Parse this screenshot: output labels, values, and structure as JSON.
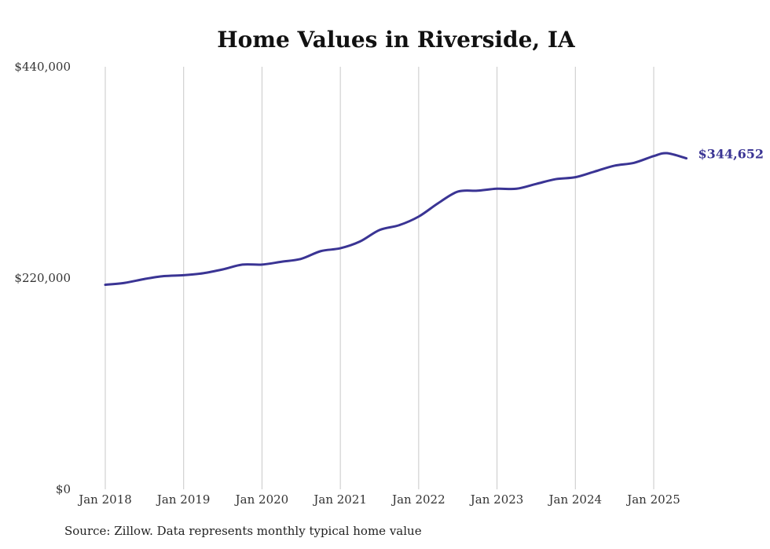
{
  "chart_data": {
    "type": "line",
    "title": "Home Values in Riverside, IA",
    "xlabel": "",
    "ylabel": "",
    "ylim": [
      0,
      440000
    ],
    "xlim": [
      "2018-01",
      "2025-06"
    ],
    "x_ticks": [
      "Jan 2018",
      "Jan 2019",
      "Jan 2020",
      "Jan 2021",
      "Jan 2022",
      "Jan 2023",
      "Jan 2024",
      "Jan 2025"
    ],
    "y_ticks": [
      "$0",
      "$220,000",
      "$440,000"
    ],
    "y_tick_values": [
      0,
      220000,
      440000
    ],
    "vertical_grid": true,
    "horizontal_grid": false,
    "line_color": "#3a3494",
    "end_label": "$344,652",
    "series": [
      {
        "x": [
          "2018-01",
          "2018-04",
          "2018-07",
          "2018-10",
          "2019-01",
          "2019-04",
          "2019-07",
          "2019-10",
          "2020-01",
          "2020-04",
          "2020-07",
          "2020-10",
          "2021-01",
          "2021-04",
          "2021-07",
          "2021-10",
          "2022-01",
          "2022-04",
          "2022-07",
          "2022-10",
          "2023-01",
          "2023-04",
          "2023-07",
          "2023-10",
          "2024-01",
          "2024-04",
          "2024-07",
          "2024-10",
          "2025-01",
          "2025-03",
          "2025-06"
        ],
        "values": [
          213000,
          215000,
          219000,
          222000,
          223000,
          225000,
          229000,
          234000,
          234000,
          237000,
          240000,
          248000,
          251000,
          258000,
          270000,
          275000,
          284000,
          298000,
          310000,
          311000,
          313000,
          313000,
          318000,
          323000,
          325000,
          331000,
          337000,
          340000,
          347000,
          350000,
          344652
        ]
      }
    ]
  },
  "source_note": "Source: Zillow. Data represents monthly typical home value"
}
